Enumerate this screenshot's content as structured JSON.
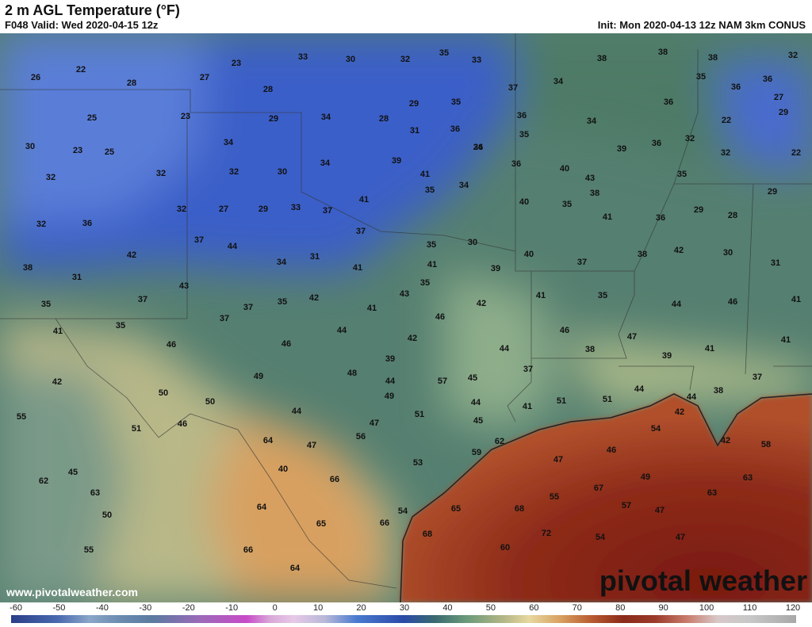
{
  "header": {
    "title": "2 m AGL Temperature (°F)",
    "valid": "F048 Valid: Wed 2020-04-15 12z",
    "init": "Init: Mon 2020-04-13 12z NAM 3km CONUS"
  },
  "map": {
    "temperature_labels": [
      26,
      22,
      28,
      27,
      23,
      33,
      30,
      32,
      35,
      33,
      38,
      38,
      38,
      32,
      35,
      36,
      34,
      37,
      36,
      27,
      29,
      28,
      29,
      35,
      23,
      25,
      29,
      34,
      28,
      31,
      36,
      34,
      36,
      35,
      34,
      36,
      22,
      30,
      23,
      25,
      34,
      39,
      39,
      36,
      32,
      32,
      22,
      32,
      32,
      30,
      34,
      36,
      41,
      40,
      43,
      38,
      35,
      32,
      35,
      34,
      29,
      26,
      32,
      27,
      29,
      33,
      37,
      41,
      40,
      35,
      41,
      36,
      29,
      28,
      32,
      36,
      37,
      30,
      35,
      37,
      44,
      42,
      40,
      37,
      38,
      42,
      30,
      31,
      38,
      31,
      31,
      34,
      41,
      41,
      39,
      35,
      43,
      43,
      41,
      35,
      37,
      37,
      35,
      42,
      41,
      42,
      44,
      46,
      41,
      35,
      37,
      46,
      35,
      41,
      44,
      42,
      46,
      47,
      41,
      46,
      46,
      44,
      38,
      41,
      39,
      39,
      48,
      49,
      37,
      42,
      44,
      57,
      45,
      37,
      44,
      50,
      49,
      44,
      51,
      51,
      44,
      38,
      50,
      44,
      41,
      55,
      51,
      42,
      45,
      47,
      46,
      51,
      56,
      54,
      62,
      64,
      42,
      58,
      47,
      46,
      59,
      53,
      47,
      40,
      45,
      62,
      66,
      49,
      63,
      63,
      67,
      55,
      63,
      64,
      65,
      68,
      57,
      47,
      54,
      50,
      65,
      66,
      68,
      72,
      54,
      47,
      66,
      55,
      60,
      64
    ]
  },
  "footer": {
    "website": "www.pivotalweather.com",
    "logo": "pivotal weather"
  },
  "colorbar": {
    "ticks": [
      -60,
      -50,
      -40,
      -30,
      -20,
      -10,
      0,
      10,
      20,
      30,
      40,
      50,
      60,
      70,
      80,
      90,
      100,
      110,
      120
    ]
  }
}
